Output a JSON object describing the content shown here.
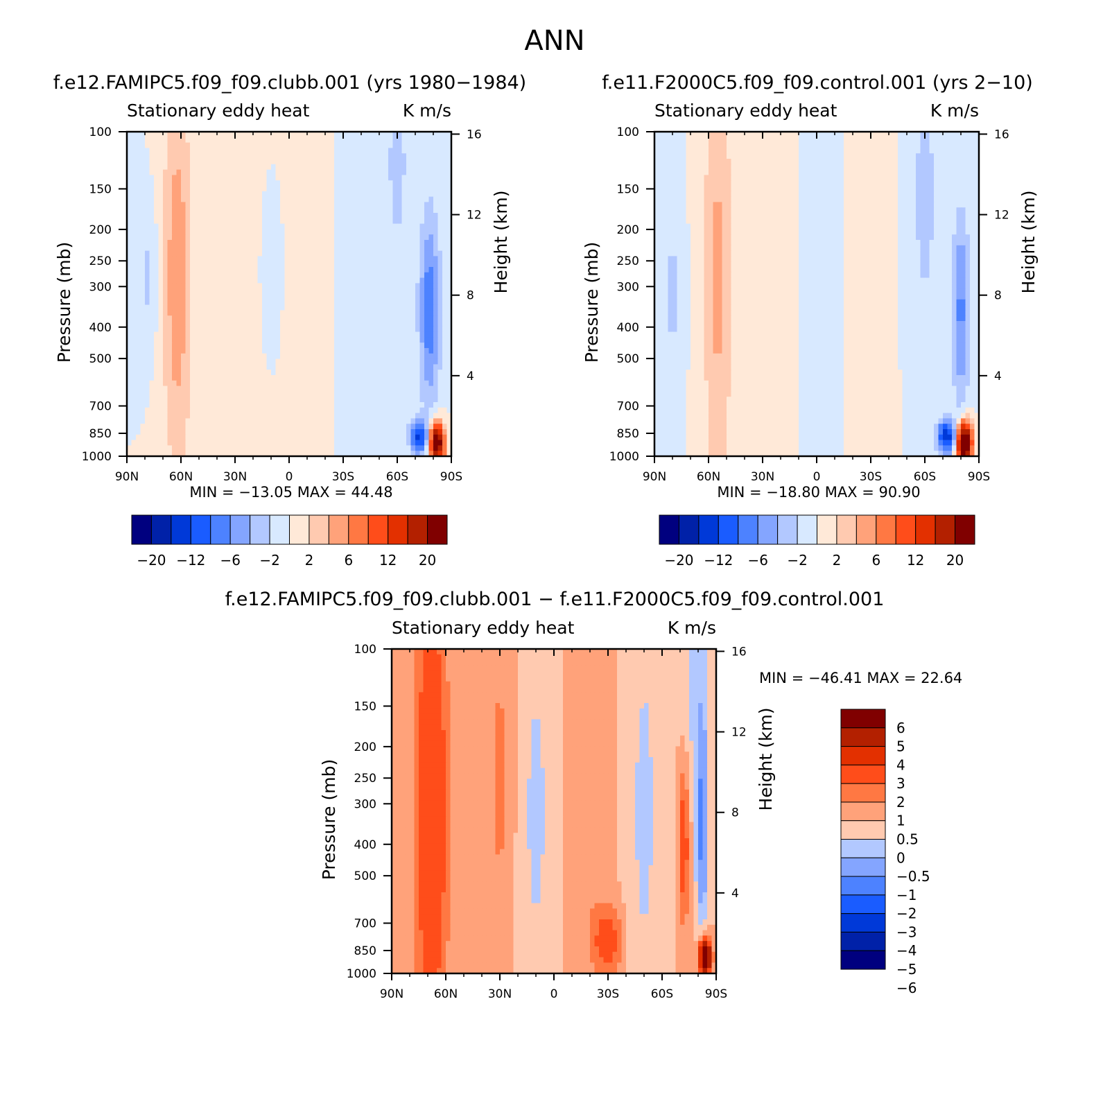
{
  "figure": {
    "title": "ANN"
  },
  "chart_data": [
    {
      "type": "heatmap",
      "title": "f.e12.FAMIPC5.f09_f09.clubb.001 (yrs 1980-1984)",
      "subtitle_left": "Stationary eddy heat",
      "subtitle_right": "K m/s",
      "xlabel": "",
      "ylabel": "Pressure (mb)",
      "y2label": "Height (km)",
      "x_ticks": [
        "90N",
        "60N",
        "30N",
        "0",
        "30S",
        "60S",
        "90S"
      ],
      "y_ticks": [
        "100",
        "150",
        "200",
        "250",
        "300",
        "400",
        "500",
        "700",
        "850",
        "1000"
      ],
      "y2_ticks": [
        "16",
        "12",
        "8",
        "4"
      ],
      "y_scale": "log",
      "min_label": "MIN = -13.05",
      "max_label": "MAX = 44.48",
      "stats": {
        "min": -13.05,
        "max": 44.48
      },
      "colorbar_labels": [
        "-20",
        "-12",
        "-6",
        "-2",
        "2",
        "6",
        "12",
        "20"
      ]
    },
    {
      "type": "heatmap",
      "title": "f.e11.F2000C5.f09_f09.control.001 (yrs 2-10)",
      "subtitle_left": "Stationary eddy heat",
      "subtitle_right": "K m/s",
      "xlabel": "",
      "ylabel": "Pressure (mb)",
      "y2label": "Height (km)",
      "x_ticks": [
        "90N",
        "60N",
        "30N",
        "0",
        "30S",
        "60S",
        "90S"
      ],
      "y_ticks": [
        "100",
        "150",
        "200",
        "250",
        "300",
        "400",
        "500",
        "700",
        "850",
        "1000"
      ],
      "y2_ticks": [
        "16",
        "12",
        "8",
        "4"
      ],
      "y_scale": "log",
      "min_label": "MIN = -18.80",
      "max_label": "MAX = 90.90",
      "stats": {
        "min": -18.8,
        "max": 90.9
      },
      "colorbar_labels": [
        "-20",
        "-12",
        "-6",
        "-2",
        "2",
        "6",
        "12",
        "20"
      ]
    },
    {
      "type": "heatmap",
      "title": "f.e12.FAMIPC5.f09_f09.clubb.001 - f.e11.F2000C5.f09_f09.control.001",
      "subtitle_left": "Stationary eddy heat",
      "subtitle_right": "K m/s",
      "xlabel": "",
      "ylabel": "Pressure (mb)",
      "y2label": "Height (km)",
      "x_ticks": [
        "90N",
        "60N",
        "30N",
        "0",
        "30S",
        "60S",
        "90S"
      ],
      "y_ticks": [
        "100",
        "150",
        "200",
        "250",
        "300",
        "400",
        "500",
        "700",
        "850",
        "1000"
      ],
      "y2_ticks": [
        "16",
        "12",
        "8",
        "4"
      ],
      "y_scale": "log",
      "min_label": "MIN = -46.41",
      "max_label": "MAX = 22.64",
      "stats": {
        "min": -46.41,
        "max": 22.64
      },
      "colorbar_labels": [
        "6",
        "5",
        "4",
        "3",
        "2",
        "1",
        "0.5",
        "0",
        "-0.5",
        "-1",
        "-2",
        "-3",
        "-4",
        "-5",
        "-6"
      ]
    }
  ],
  "colors": {
    "scale": [
      "#00007f",
      "#0021a8",
      "#0039d8",
      "#1a5cff",
      "#4d82ff",
      "#84a5ff",
      "#b2c8ff",
      "#d8e9ff",
      "#ffe9d8",
      "#ffcab0",
      "#ffa27a",
      "#ff7843",
      "#ff4d1a",
      "#e33000",
      "#b32000",
      "#800000"
    ]
  }
}
